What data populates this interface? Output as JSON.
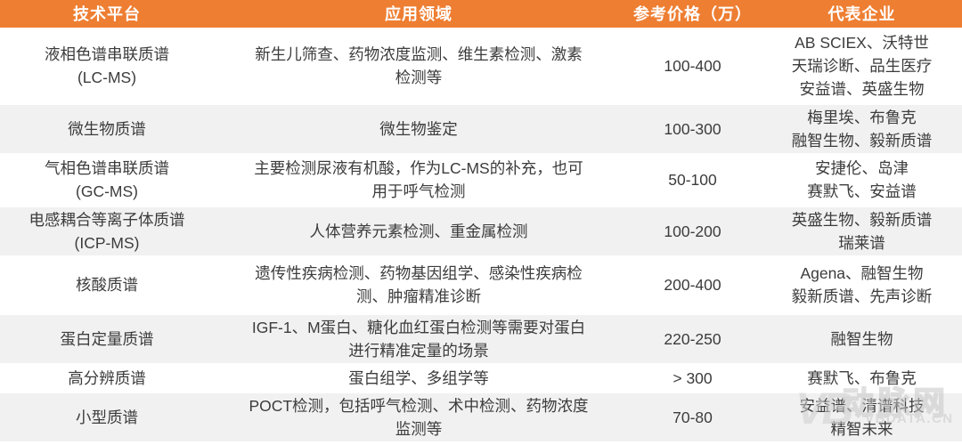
{
  "chart_data": {
    "type": "table",
    "columns": [
      "技术平台",
      "应用领域",
      "参考价格（万）",
      "代表企业"
    ],
    "rows": [
      [
        [
          "液相色谱串联质谱",
          "(LC-MS)"
        ],
        [
          "新生儿筛查、药物浓度监测、维生素检测、激素",
          "检测等"
        ],
        "100-400",
        [
          "AB SCIEX、沃特世",
          "天瑞诊断、品生医疗",
          "安益谱、英盛生物"
        ]
      ],
      [
        [
          "微生物质谱"
        ],
        [
          "微生物鉴定"
        ],
        "100-300",
        [
          "梅里埃、布鲁克",
          "融智生物、毅新质谱"
        ]
      ],
      [
        [
          "气相色谱串联质谱",
          "(GC-MS)"
        ],
        [
          "主要检测尿液有机酸，作为LC-MS的补充，也可",
          "用于呼气检测"
        ],
        "50-100",
        [
          "安捷伦、岛津",
          "赛默飞、安益谱"
        ]
      ],
      [
        [
          "电感耦合等离子体质谱",
          "(ICP-MS)"
        ],
        [
          "人体营养元素检测、重金属检测"
        ],
        "100-200",
        [
          "英盛生物、毅新质谱",
          "瑞莱谱"
        ]
      ],
      [
        [
          "核酸质谱"
        ],
        [
          "遗传性疾病检测、药物基因组学、感染性疾病检",
          "测、肿瘤精准诊断"
        ],
        "200-400",
        [
          "Agena、融智生物",
          "毅新质谱、先声诊断"
        ]
      ],
      [
        [
          "蛋白定量质谱"
        ],
        [
          "IGF-1、M蛋白、糖化血红蛋白检测等需要对蛋白",
          "进行精准定量的场景"
        ],
        "220-250",
        [
          "融智生物"
        ]
      ],
      [
        [
          "高分辨质谱"
        ],
        [
          "蛋白组学、多组学等"
        ],
        "> 300",
        [
          "赛默飞、布鲁克"
        ]
      ],
      [
        [
          "小型质谱"
        ],
        [
          "POCT检测，包括呼气检测、术中检测、药物浓度",
          "监测等"
        ],
        "70-80",
        [
          "安益谱、清谱科技",
          "精智未来"
        ]
      ]
    ]
  },
  "watermark": {
    "logo": "VB",
    "name": "动脉网",
    "url": "VBDATA.CN"
  },
  "colors": {
    "header_bg": "#EE7E32",
    "header_text": "#FFFFFF",
    "stripe_bg": "#F1F1F1",
    "text": "#3C3C3C"
  }
}
